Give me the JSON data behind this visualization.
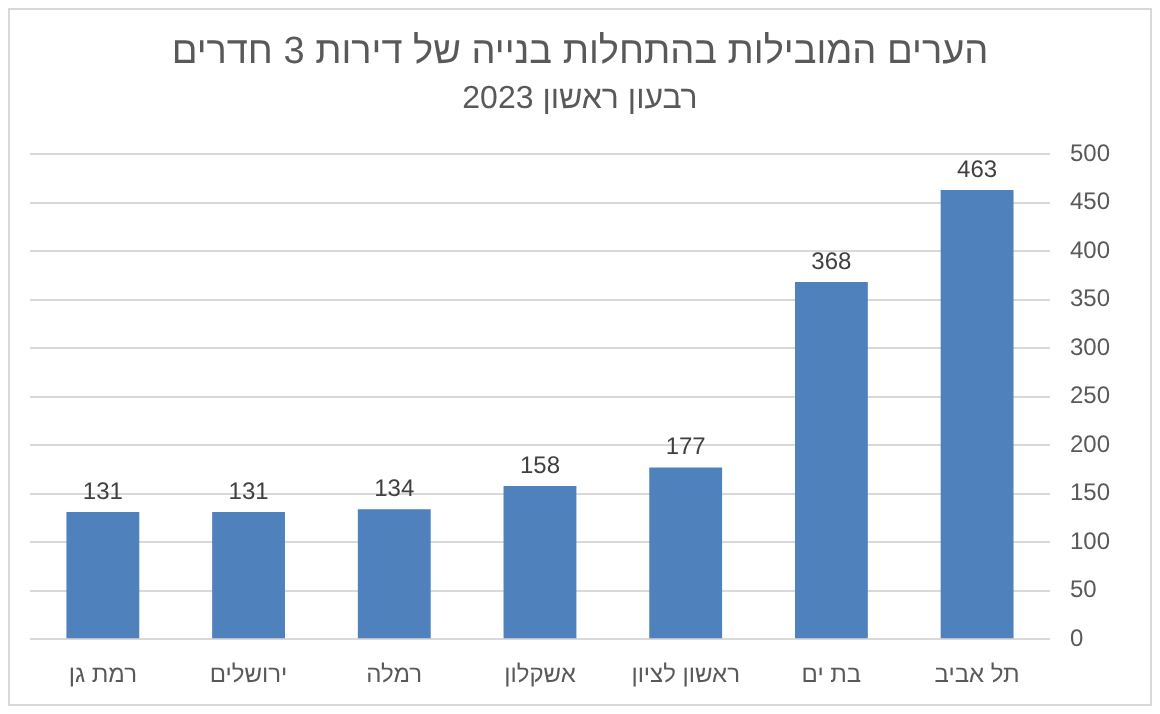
{
  "chart_data": {
    "type": "bar",
    "title": "הערים המובילות בהתחלות בנייה של דירות 3 חדרים",
    "subtitle": "רבעון ראשון 2023",
    "categories": [
      "רמת גן",
      "ירושלים",
      "רמלה",
      "אשקלון",
      "ראשון לציון",
      "בת ים",
      "תל אביב"
    ],
    "values": [
      131,
      131,
      134,
      158,
      177,
      368,
      463
    ],
    "color": "#4f81bd",
    "ylim": [
      0,
      500
    ],
    "yticks": [
      0,
      50,
      100,
      150,
      200,
      250,
      300,
      350,
      400,
      450,
      500
    ],
    "grid": "y",
    "data_labels": true
  }
}
